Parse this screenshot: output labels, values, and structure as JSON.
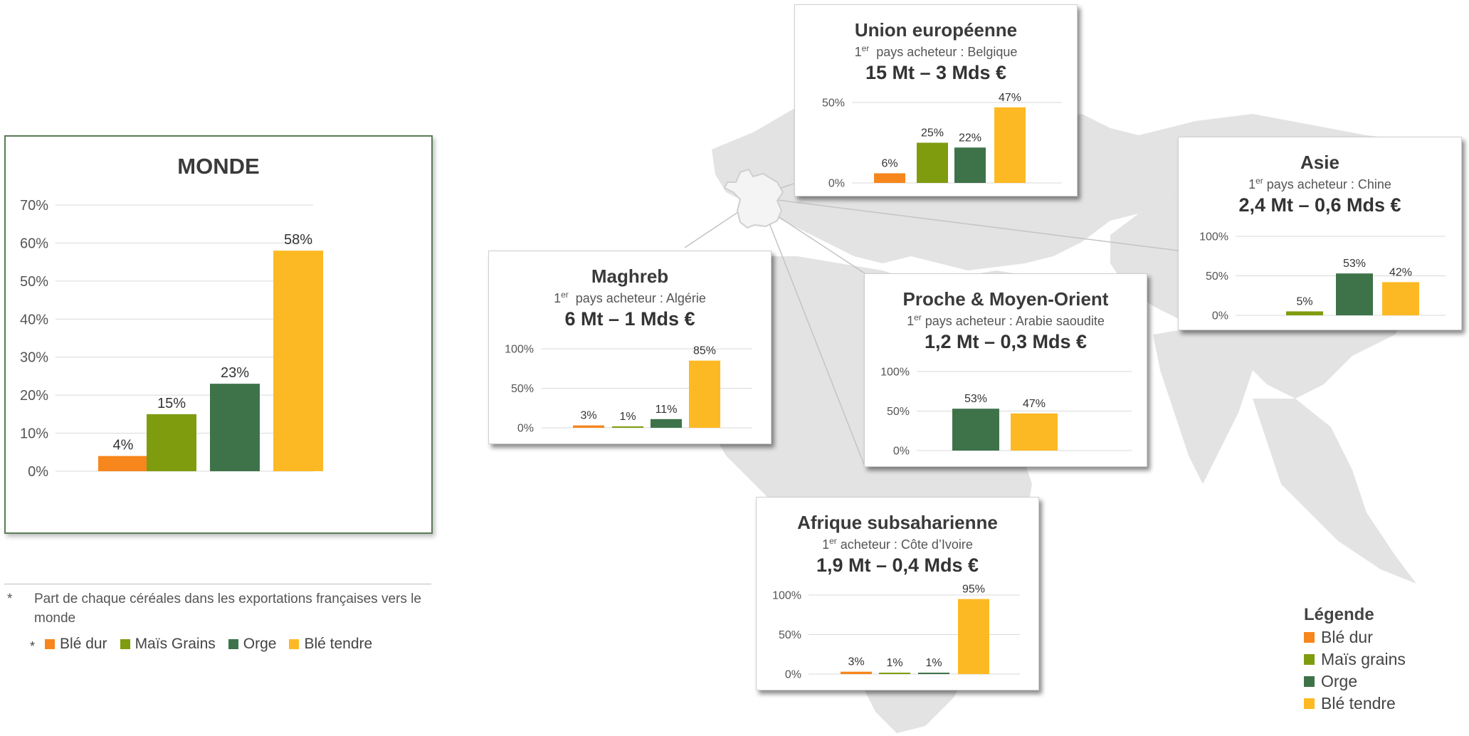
{
  "colors": {
    "ble_dur": "#f7861c",
    "mais": "#7f9c0f",
    "orge": "#3e734a",
    "ble_tendre": "#fdb924",
    "map": "#e3e3e3",
    "france": "#f4f4f4"
  },
  "monde": {
    "title": "MONDE",
    "footnote_mark": "*",
    "legend": [
      {
        "label": "Blé dur",
        "color": "#f7861c"
      },
      {
        "label": "Maïs Grains",
        "color": "#7f9c0f"
      },
      {
        "label": "Orge",
        "color": "#3e734a"
      },
      {
        "label": "Blé tendre",
        "color": "#fdb924"
      }
    ]
  },
  "footnote": {
    "mark": "*",
    "text": "Part de chaque céréales dans les exportations françaises vers le monde"
  },
  "legend": {
    "title": "Légende",
    "items": [
      {
        "label": "Blé dur",
        "color": "#f7861c"
      },
      {
        "label": "Maïs grains",
        "color": "#7f9c0f"
      },
      {
        "label": "Orge",
        "color": "#3e734a"
      },
      {
        "label": "Blé tendre",
        "color": "#fdb924"
      }
    ]
  },
  "regions": {
    "ue": {
      "title": "Union européenne",
      "sub_pre": "1",
      "sub_sup": "er",
      "sub_post": "  pays acheteur : Belgique",
      "value": "15 Mt – 3 Mds €"
    },
    "asie": {
      "title": "Asie",
      "sub_pre": "1",
      "sub_sup": "er",
      "sub_post": " pays acheteur : Chine",
      "value": "2,4 Mt – 0,6 Mds €"
    },
    "maghreb": {
      "title": "Maghreb",
      "sub_pre": "1",
      "sub_sup": "er",
      "sub_post": "  pays acheteur : Algérie",
      "value": "6 Mt – 1 Mds €"
    },
    "pmo": {
      "title": "Proche & Moyen-Orient",
      "sub_pre": "1",
      "sub_sup": "er",
      "sub_post": " pays acheteur : Arabie saoudite",
      "value": "1,2 Mt – 0,3 Mds €"
    },
    "afrique": {
      "title": "Afrique subsaharienne",
      "sub_pre": "1",
      "sub_sup": "er",
      "sub_post": " acheteur : Côte d’Ivoire",
      "value": "1,9 Mt – 0,4 Mds €"
    }
  },
  "chart_data": [
    {
      "id": "monde",
      "type": "bar",
      "title": "MONDE",
      "categories": [
        "Blé dur",
        "Maïs Grains",
        "Orge",
        "Blé tendre"
      ],
      "values": [
        4,
        15,
        23,
        58
      ],
      "value_labels": [
        "4%",
        "15%",
        "23%",
        "58%"
      ],
      "colors": [
        "#f7861c",
        "#7f9c0f",
        "#3e734a",
        "#fdb924"
      ],
      "ylim": [
        0,
        70
      ],
      "yticks": [
        0,
        10,
        20,
        30,
        40,
        50,
        60,
        70
      ],
      "ytick_labels": [
        "0%",
        "10%",
        "20%",
        "30%",
        "40%",
        "50%",
        "60%",
        "70%"
      ],
      "grid": true,
      "legend": "bottom"
    },
    {
      "id": "ue",
      "type": "bar",
      "title": "Union européenne",
      "categories": [
        "Blé dur",
        "Maïs grains",
        "Orge",
        "Blé tendre"
      ],
      "values": [
        6,
        25,
        22,
        47
      ],
      "value_labels": [
        "6%",
        "25%",
        "22%",
        "47%"
      ],
      "colors": [
        "#f7861c",
        "#7f9c0f",
        "#3e734a",
        "#fdb924"
      ],
      "ylim": [
        0,
        50
      ],
      "yticks": [
        0,
        50
      ],
      "ytick_labels": [
        "0%",
        "50%"
      ],
      "grid": true
    },
    {
      "id": "asie",
      "type": "bar",
      "title": "Asie",
      "categories": [
        "Maïs grains",
        "Orge",
        "Blé tendre"
      ],
      "values": [
        5,
        53,
        42
      ],
      "value_labels": [
        "5%",
        "53%",
        "42%"
      ],
      "colors": [
        "#7f9c0f",
        "#3e734a",
        "#fdb924"
      ],
      "ylim": [
        0,
        100
      ],
      "yticks": [
        0,
        50,
        100
      ],
      "ytick_labels": [
        "0%",
        "50%",
        "100%"
      ],
      "grid": true
    },
    {
      "id": "maghreb",
      "type": "bar",
      "title": "Maghreb",
      "categories": [
        "Blé dur",
        "Maïs grains",
        "Orge",
        "Blé tendre"
      ],
      "values": [
        3,
        1,
        11,
        85
      ],
      "value_labels": [
        "3%",
        "1%",
        "11%",
        "85%"
      ],
      "colors": [
        "#f7861c",
        "#7f9c0f",
        "#3e734a",
        "#fdb924"
      ],
      "ylim": [
        0,
        100
      ],
      "yticks": [
        0,
        50,
        100
      ],
      "ytick_labels": [
        "0%",
        "50%",
        "100%"
      ],
      "grid": true
    },
    {
      "id": "pmo",
      "type": "bar",
      "title": "Proche & Moyen-Orient",
      "categories": [
        "Orge",
        "Blé tendre"
      ],
      "values": [
        53,
        47
      ],
      "value_labels": [
        "53%",
        "47%"
      ],
      "colors": [
        "#3e734a",
        "#fdb924"
      ],
      "ylim": [
        0,
        100
      ],
      "yticks": [
        0,
        50,
        100
      ],
      "ytick_labels": [
        "0%",
        "50%",
        "100%"
      ],
      "grid": true
    },
    {
      "id": "afrique",
      "type": "bar",
      "title": "Afrique subsaharienne",
      "categories": [
        "Blé dur",
        "Maïs grains",
        "Orge",
        "Blé tendre"
      ],
      "values": [
        3,
        1,
        1,
        95
      ],
      "value_labels": [
        "3%",
        "1%",
        "1%",
        "95%"
      ],
      "colors": [
        "#f7861c",
        "#7f9c0f",
        "#3e734a",
        "#fdb924"
      ],
      "ylim": [
        0,
        100
      ],
      "yticks": [
        0,
        50,
        100
      ],
      "ytick_labels": [
        "0%",
        "50%",
        "100%"
      ],
      "grid": true
    }
  ]
}
